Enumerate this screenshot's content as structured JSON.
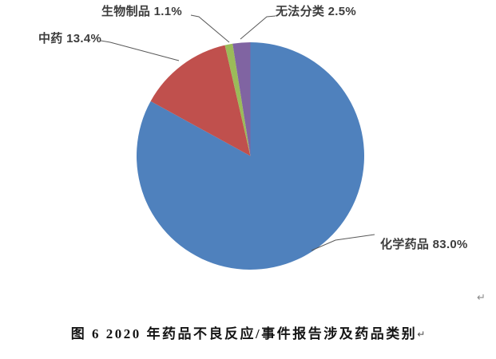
{
  "chart_data": {
    "type": "pie",
    "title": "图 6 2020 年药品不良反应/事件报告涉及药品类别",
    "categories": [
      "化学药品",
      "中药",
      "生物制品",
      "无法分类"
    ],
    "values": [
      83.0,
      13.4,
      1.1,
      2.5
    ],
    "unit": "%",
    "labels": [
      "化学药品 83.0%",
      "中药 13.4%",
      "生物制品 1.1%",
      "无法分类 2.5%"
    ],
    "colors": [
      "#4f81bd",
      "#c0504d",
      "#9bbb59",
      "#8064a2"
    ],
    "start_angle_deg": 0,
    "direction": "clockwise",
    "legend_position": "none",
    "label_style": "outside-with-leader-lines",
    "leader_line_color": "#595959"
  },
  "caption": {
    "text": "图 6 2020 年药品不良反应/事件报告涉及药品类别",
    "paragraph_mark": "↵"
  },
  "page": {
    "background": "#ffffff",
    "paragraph_mark_after_chart": "↵"
  }
}
